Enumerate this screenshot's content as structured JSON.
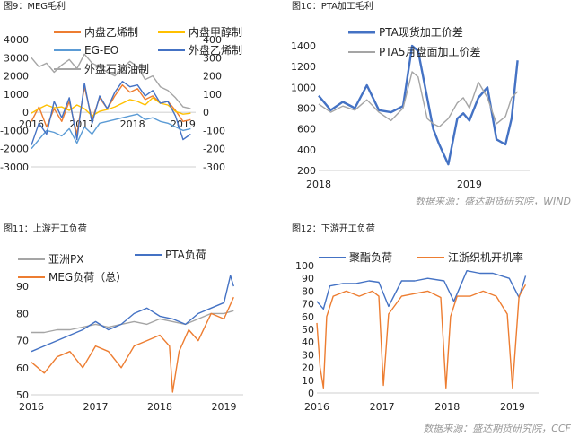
{
  "source_top": "数据来源：盛达期货研究院，WIND",
  "source_bottom": "数据来源：盛达期货研究院，CCF",
  "chart_data": [
    {
      "id": "fig9",
      "type": "line",
      "title": "图9：MEG毛利",
      "xticks": [
        "2016",
        "2017",
        "2018",
        "2019"
      ],
      "y_left_ticks": [
        "-3000",
        "-2000",
        "-1000",
        "0",
        "1000",
        "2000",
        "3000",
        "4000"
      ],
      "y_right_ticks": [
        "-300",
        "-200",
        "-100",
        "0",
        "100",
        "200",
        "300",
        "400"
      ],
      "ylim_left": [
        -3000,
        4000
      ],
      "ylim_right": [
        -300,
        400
      ],
      "legend": "top, two columns",
      "series": [
        {
          "name": "内盘乙烯制",
          "color": "#ed7d31",
          "axis": "left",
          "x": [
            2016,
            2016.15,
            2016.3,
            2016.45,
            2016.6,
            2016.75,
            2016.9,
            2017.05,
            2017.2,
            2017.35,
            2017.5,
            2017.65,
            2017.8,
            2017.95,
            2018.1,
            2018.25,
            2018.4,
            2018.55,
            2018.7,
            2018.85,
            2019,
            2019.15
          ],
          "y": [
            -500,
            300,
            -800,
            200,
            -500,
            600,
            -1200,
            1400,
            -400,
            800,
            200,
            900,
            1500,
            1100,
            1300,
            700,
            900,
            500,
            600,
            100,
            -500,
            -400
          ]
        },
        {
          "name": "内盘甲醇制",
          "color": "#ffc000",
          "axis": "right",
          "x": [
            2016,
            2016.15,
            2016.3,
            2016.45,
            2016.6,
            2016.75,
            2016.9,
            2017.05,
            2017.2,
            2017.35,
            2017.5,
            2017.65,
            2017.8,
            2017.95,
            2018.1,
            2018.25,
            2018.4,
            2018.55,
            2018.7,
            2018.85,
            2019,
            2019.15
          ],
          "y": [
            -5,
            20,
            40,
            25,
            30,
            10,
            40,
            20,
            -20,
            5,
            15,
            30,
            50,
            70,
            60,
            40,
            80,
            50,
            40,
            5,
            -10,
            -5
          ]
        },
        {
          "name": "EG-EO",
          "color": "#5b9bd5",
          "axis": "right",
          "x": [
            2016,
            2016.15,
            2016.3,
            2016.45,
            2016.6,
            2016.75,
            2016.9,
            2017.05,
            2017.2,
            2017.35,
            2017.5,
            2017.65,
            2017.8,
            2017.95,
            2018.1,
            2018.25,
            2018.4,
            2018.55,
            2018.7,
            2018.85,
            2019,
            2019.15
          ],
          "y": [
            -200,
            -150,
            -100,
            -110,
            -130,
            -90,
            -170,
            -80,
            -120,
            -60,
            -50,
            -40,
            -30,
            -20,
            -10,
            -40,
            -30,
            -50,
            -60,
            -80,
            -100,
            -90
          ]
        },
        {
          "name": "外盘乙烯制",
          "color": "#4472c4",
          "axis": "right",
          "x": [
            2016,
            2016.15,
            2016.3,
            2016.45,
            2016.6,
            2016.75,
            2016.9,
            2017.05,
            2017.2,
            2017.35,
            2017.5,
            2017.65,
            2017.8,
            2017.95,
            2018.1,
            2018.25,
            2018.4,
            2018.55,
            2018.7,
            2018.85,
            2019,
            2019.15
          ],
          "y": [
            -180,
            -60,
            -120,
            60,
            -30,
            80,
            -150,
            160,
            -60,
            90,
            20,
            110,
            170,
            140,
            150,
            90,
            120,
            50,
            60,
            -20,
            -150,
            -120
          ]
        },
        {
          "name": "外盘石脑油制",
          "color": "#a5a5a5",
          "axis": "left",
          "x": [
            2016,
            2016.15,
            2016.3,
            2016.45,
            2016.6,
            2016.75,
            2016.9,
            2017.05,
            2017.2,
            2017.35,
            2017.5,
            2017.65,
            2017.8,
            2017.95,
            2018.1,
            2018.25,
            2018.4,
            2018.55,
            2018.7,
            2018.85,
            2019,
            2019.15
          ],
          "y": [
            3000,
            2500,
            2700,
            2200,
            2600,
            2900,
            2400,
            3200,
            2700,
            2500,
            2200,
            2000,
            2400,
            2800,
            2500,
            1800,
            2000,
            1400,
            1200,
            800,
            300,
            200
          ]
        }
      ]
    },
    {
      "id": "fig10",
      "type": "line",
      "title": "图10：PTA加工毛利",
      "xticks": [
        "2018",
        "2019"
      ],
      "y_left_ticks": [
        "200",
        "400",
        "600",
        "800",
        "1000",
        "1200",
        "1400"
      ],
      "ylim_left": [
        200,
        1400
      ],
      "legend": "top",
      "series": [
        {
          "name": "PTA现货加工价差",
          "color": "#4472c4",
          "x": [
            2018,
            2018.08,
            2018.16,
            2018.24,
            2018.32,
            2018.4,
            2018.48,
            2018.56,
            2018.62,
            2018.66,
            2018.72,
            2018.76,
            2018.8,
            2018.86,
            2018.92,
            2018.96,
            2019,
            2019.06,
            2019.12,
            2019.18,
            2019.24,
            2019.28,
            2019.32
          ],
          "y": [
            920,
            780,
            860,
            800,
            1020,
            780,
            760,
            820,
            1400,
            1350,
            900,
            600,
            450,
            260,
            700,
            750,
            680,
            900,
            1000,
            500,
            450,
            700,
            1260
          ]
        },
        {
          "name": "PTA5月盘面加工价差",
          "color": "#a5a5a5",
          "x": [
            2018,
            2018.08,
            2018.16,
            2018.24,
            2018.32,
            2018.4,
            2018.48,
            2018.56,
            2018.62,
            2018.66,
            2018.72,
            2018.76,
            2018.8,
            2018.86,
            2018.92,
            2018.96,
            2019,
            2019.06,
            2019.12,
            2019.18,
            2019.24,
            2019.28,
            2019.32
          ],
          "y": [
            840,
            760,
            820,
            780,
            880,
            760,
            680,
            800,
            1150,
            1100,
            700,
            650,
            620,
            700,
            850,
            900,
            800,
            1050,
            900,
            650,
            720,
            900,
            960
          ]
        }
      ]
    },
    {
      "id": "fig11",
      "type": "line",
      "title": "图11：上游开工负荷",
      "xticks": [
        "2016",
        "2017",
        "2018",
        "2019"
      ],
      "y_left_ticks": [
        "50",
        "60",
        "70",
        "80",
        "90"
      ],
      "ylim_left": [
        50,
        97
      ],
      "legend": "top",
      "series": [
        {
          "name": "亚洲PX",
          "color": "#a5a5a5",
          "x": [
            2016,
            2016.2,
            2016.4,
            2016.6,
            2016.8,
            2017,
            2017.2,
            2017.4,
            2017.6,
            2017.8,
            2018,
            2018.2,
            2018.4,
            2018.6,
            2018.8,
            2019,
            2019.15
          ],
          "y": [
            73,
            73,
            74,
            74,
            75,
            76,
            75,
            76,
            77,
            76,
            78,
            77,
            76,
            78,
            80,
            80,
            81
          ]
        },
        {
          "name": "PTA负荷",
          "color": "#4472c4",
          "x": [
            2016,
            2016.2,
            2016.4,
            2016.6,
            2016.8,
            2017,
            2017.2,
            2017.4,
            2017.6,
            2017.8,
            2018,
            2018.2,
            2018.4,
            2018.6,
            2018.8,
            2019,
            2019.1,
            2019.15
          ],
          "y": [
            66,
            68,
            70,
            72,
            74,
            77,
            74,
            76,
            80,
            82,
            79,
            78,
            76,
            80,
            82,
            84,
            94,
            90
          ]
        },
        {
          "name": "MEG负荷（总）",
          "color": "#ed7d31",
          "x": [
            2016,
            2016.2,
            2016.4,
            2016.6,
            2016.8,
            2017,
            2017.2,
            2017.4,
            2017.6,
            2017.8,
            2018,
            2018.15,
            2018.2,
            2018.3,
            2018.45,
            2018.6,
            2018.8,
            2019,
            2019.15
          ],
          "y": [
            62,
            58,
            64,
            66,
            60,
            68,
            66,
            60,
            68,
            70,
            72,
            68,
            51,
            66,
            74,
            70,
            80,
            78,
            86
          ]
        }
      ]
    },
    {
      "id": "fig12",
      "type": "line",
      "title": "图12：下游开工负荷",
      "xticks": [
        "2016",
        "2017",
        "2018",
        "2019"
      ],
      "y_left_ticks": [
        "0",
        "10",
        "20",
        "30",
        "40",
        "50",
        "60",
        "70",
        "80",
        "90",
        "100"
      ],
      "ylim_left": [
        0,
        100
      ],
      "legend": "top",
      "series": [
        {
          "name": "聚酯负荷",
          "color": "#4472c4",
          "x": [
            2016,
            2016.1,
            2016.2,
            2016.4,
            2016.6,
            2016.8,
            2016.95,
            2017.1,
            2017.3,
            2017.5,
            2017.7,
            2017.95,
            2018.1,
            2018.3,
            2018.5,
            2018.7,
            2018.95,
            2019.1,
            2019.2
          ],
          "y": [
            72,
            66,
            84,
            86,
            86,
            88,
            87,
            68,
            88,
            88,
            90,
            88,
            72,
            96,
            94,
            94,
            90,
            75,
            92
          ]
        },
        {
          "name": "江浙织机开机率",
          "color": "#ed7d31",
          "x": [
            2016,
            2016.05,
            2016.1,
            2016.15,
            2016.25,
            2016.45,
            2016.65,
            2016.85,
            2016.95,
            2017.02,
            2017.1,
            2017.3,
            2017.5,
            2017.7,
            2017.9,
            2017.98,
            2018.05,
            2018.15,
            2018.35,
            2018.55,
            2018.75,
            2018.92,
            2019.0,
            2019.1,
            2019.2
          ],
          "y": [
            55,
            20,
            4,
            60,
            76,
            80,
            76,
            80,
            76,
            6,
            62,
            76,
            78,
            80,
            75,
            4,
            60,
            76,
            76,
            80,
            76,
            62,
            4,
            76,
            85
          ]
        }
      ]
    }
  ]
}
